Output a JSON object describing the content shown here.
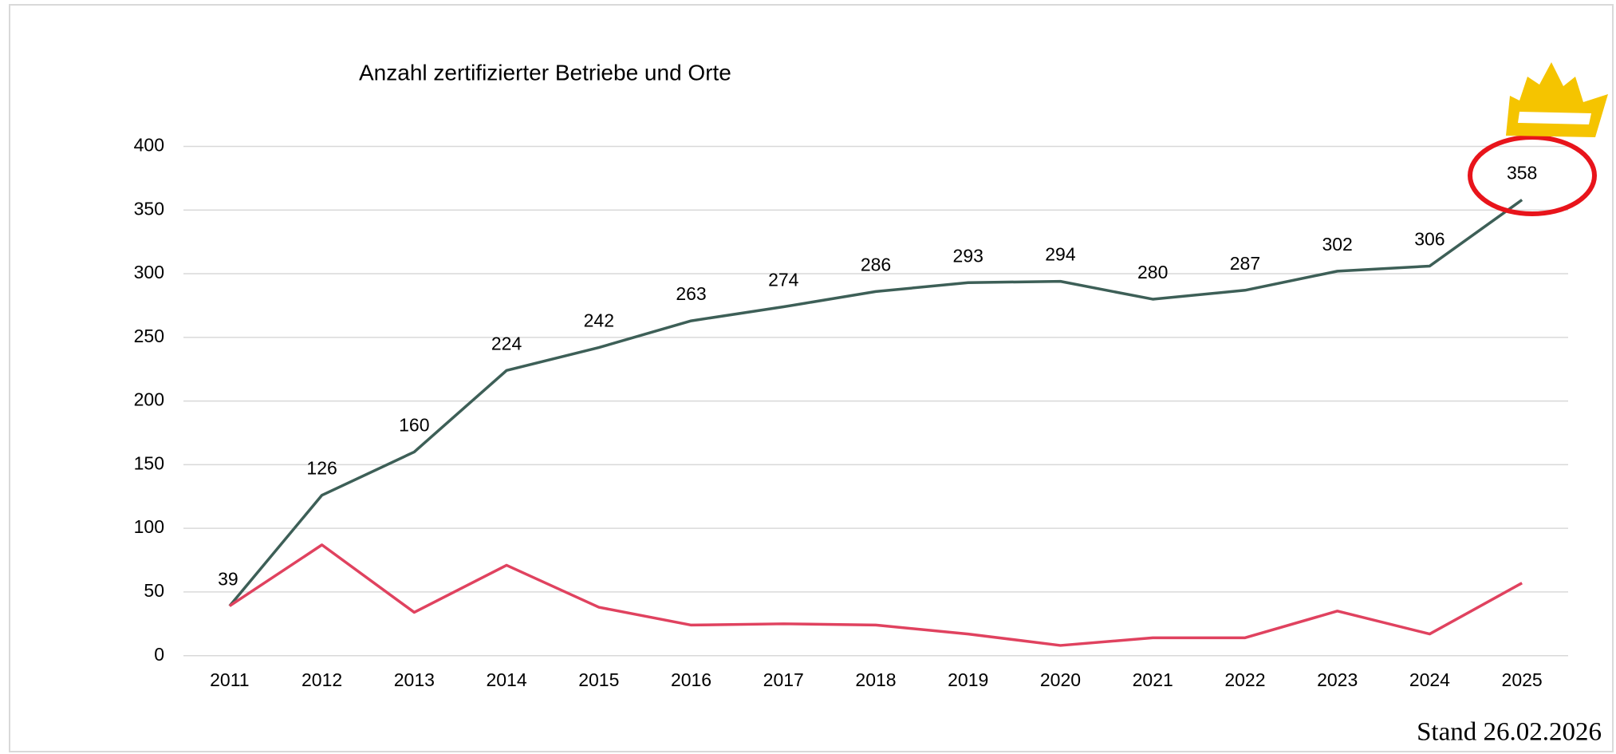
{
  "chart_data": {
    "type": "line",
    "title": "Anzahl zertifizierter Betriebe und Orte",
    "note": "Stand 26.02.2026",
    "categories": [
      "2011",
      "2012",
      "2013",
      "2014",
      "2015",
      "2016",
      "2017",
      "2018",
      "2019",
      "2020",
      "2021",
      "2022",
      "2023",
      "2024",
      "2025"
    ],
    "series": [
      {
        "color": "#3d5f57",
        "data_labels": true,
        "values": [
          39,
          126,
          160,
          224,
          242,
          263,
          274,
          286,
          293,
          294,
          280,
          287,
          302,
          306,
          358
        ]
      },
      {
        "color": "#e0425f",
        "data_labels": false,
        "values": [
          39,
          87,
          34,
          71,
          38,
          24,
          25,
          24,
          17,
          8,
          14,
          14,
          35,
          17,
          57
        ]
      }
    ],
    "ylim": [
      0,
      400
    ],
    "yticks": [
      0,
      50,
      100,
      150,
      200,
      250,
      300,
      350,
      400
    ],
    "grid": true
  }
}
